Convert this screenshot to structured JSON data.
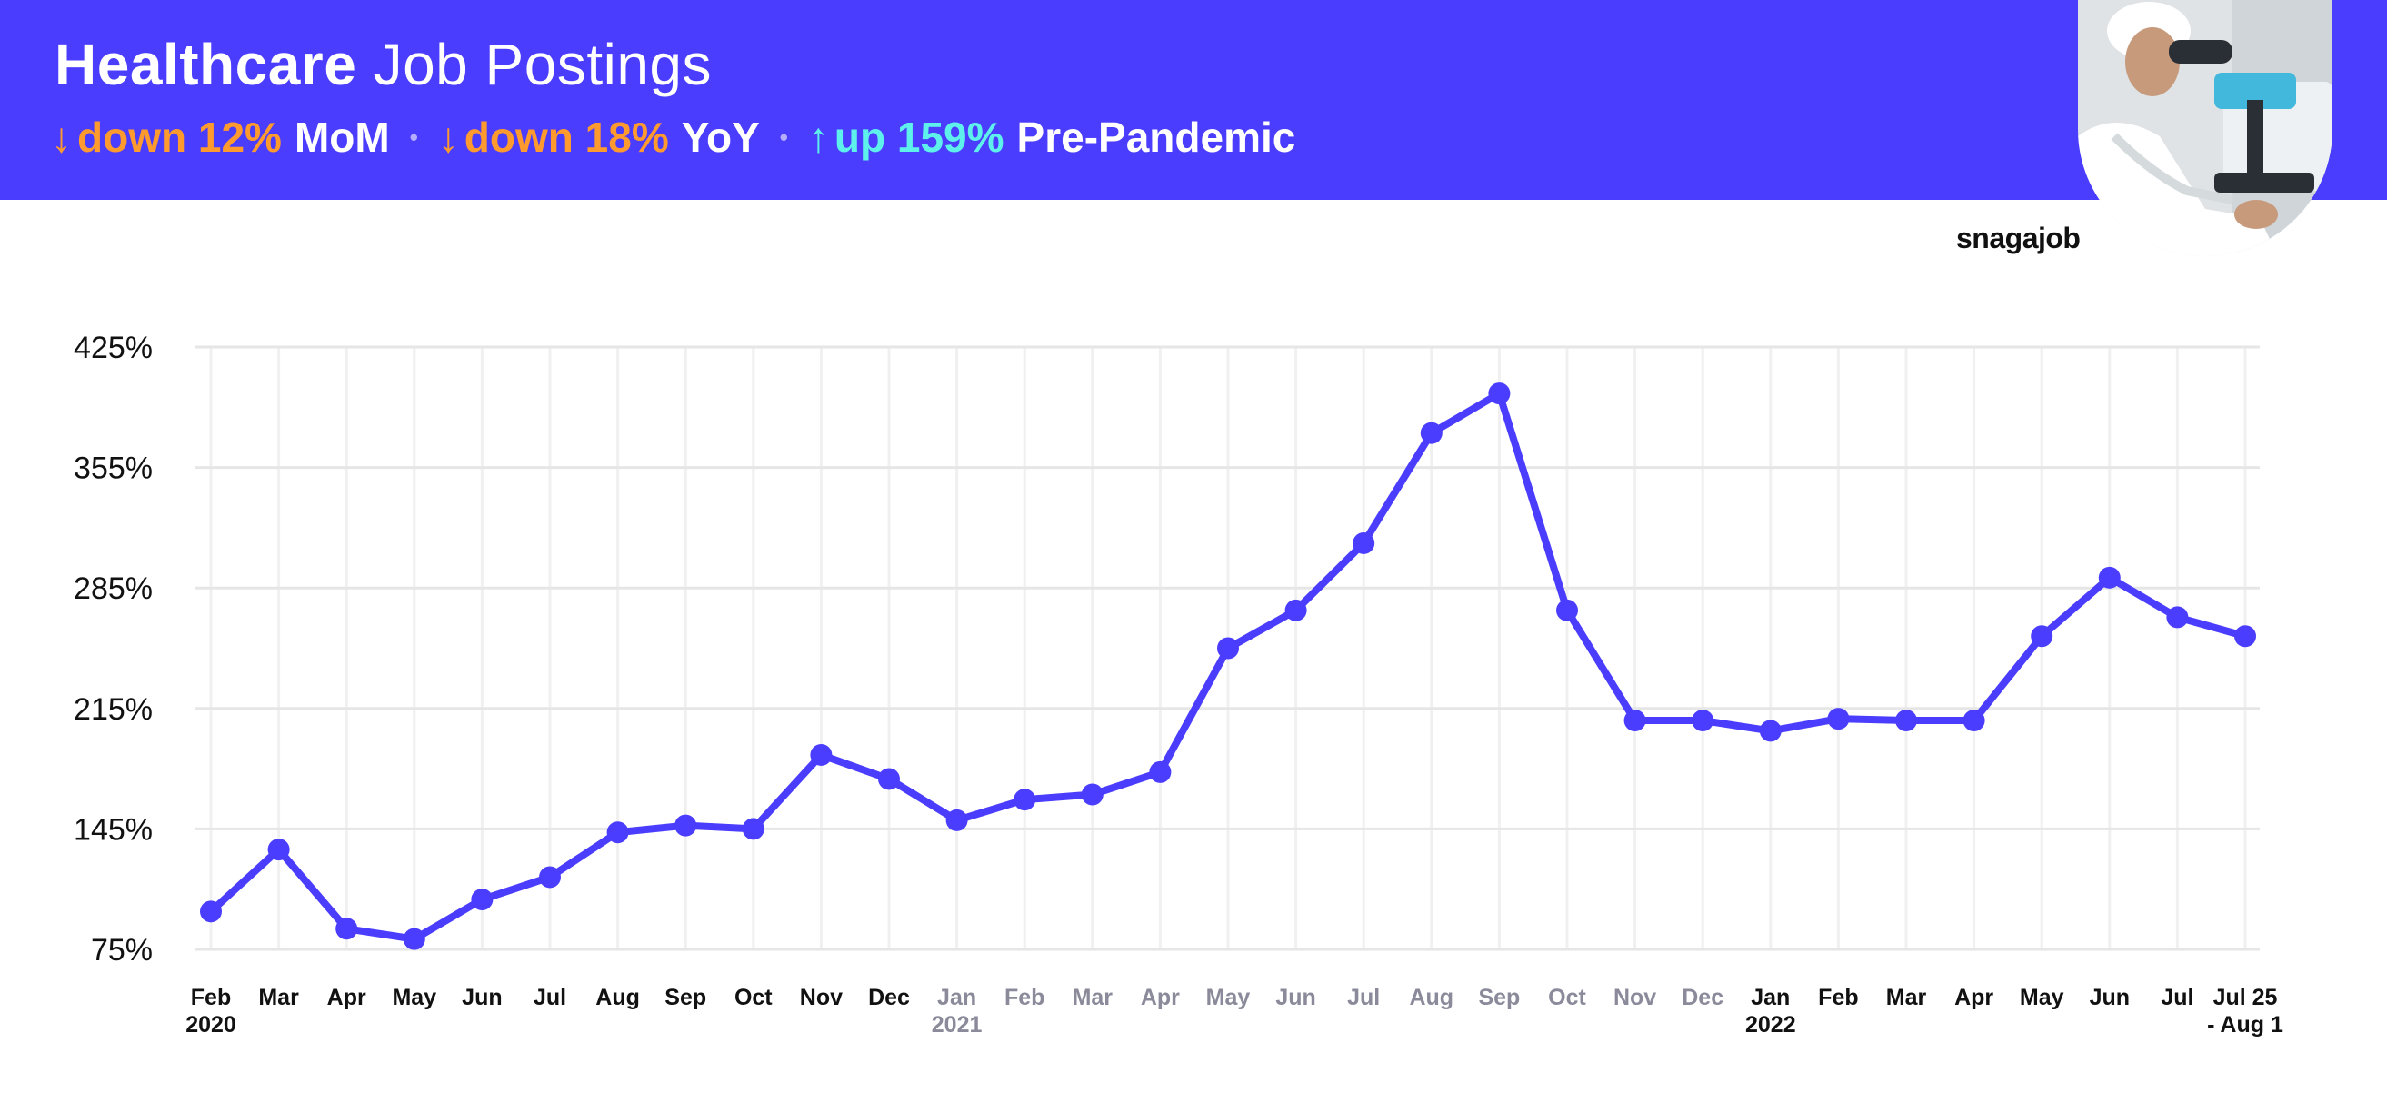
{
  "header": {
    "title_bold": "Healthcare",
    "title_light": "Job Postings",
    "stats": [
      {
        "arrow": "↓",
        "value": "down 12%",
        "label": "MoM",
        "color": "#ff9a2e"
      },
      {
        "arrow": "↓",
        "value": "down 18%",
        "label": "YoY",
        "color": "#ff9a2e"
      },
      {
        "arrow": "↑",
        "value": "up 159%",
        "label": "Pre-Pandemic",
        "color": "#5ef1ec"
      }
    ],
    "separator": "•"
  },
  "brand": "snagajob",
  "colors": {
    "header_bg": "#4b3dfd",
    "line": "#4b3dfd",
    "muted_tick": "#8a8a9a"
  },
  "chart_data": {
    "type": "line",
    "title": "",
    "xlabel": "",
    "ylabel": "",
    "ylim": [
      75,
      425
    ],
    "yticks": [
      "425%",
      "355%",
      "285%",
      "215%",
      "145%",
      "75%"
    ],
    "ytick_values": [
      425,
      355,
      285,
      215,
      145,
      75
    ],
    "grid": true,
    "categories": [
      {
        "label": "Feb",
        "sub": "2020",
        "muted": false
      },
      {
        "label": "Mar",
        "sub": "",
        "muted": false
      },
      {
        "label": "Apr",
        "sub": "",
        "muted": false
      },
      {
        "label": "May",
        "sub": "",
        "muted": false
      },
      {
        "label": "Jun",
        "sub": "",
        "muted": false
      },
      {
        "label": "Jul",
        "sub": "",
        "muted": false
      },
      {
        "label": "Aug",
        "sub": "",
        "muted": false
      },
      {
        "label": "Sep",
        "sub": "",
        "muted": false
      },
      {
        "label": "Oct",
        "sub": "",
        "muted": false
      },
      {
        "label": "Nov",
        "sub": "",
        "muted": false
      },
      {
        "label": "Dec",
        "sub": "",
        "muted": false
      },
      {
        "label": "Jan",
        "sub": "2021",
        "muted": true
      },
      {
        "label": "Feb",
        "sub": "",
        "muted": true
      },
      {
        "label": "Mar",
        "sub": "",
        "muted": true
      },
      {
        "label": "Apr",
        "sub": "",
        "muted": true
      },
      {
        "label": "May",
        "sub": "",
        "muted": true
      },
      {
        "label": "Jun",
        "sub": "",
        "muted": true
      },
      {
        "label": "Jul",
        "sub": "",
        "muted": true
      },
      {
        "label": "Aug",
        "sub": "",
        "muted": true
      },
      {
        "label": "Sep",
        "sub": "",
        "muted": true
      },
      {
        "label": "Oct",
        "sub": "",
        "muted": true
      },
      {
        "label": "Nov",
        "sub": "",
        "muted": true
      },
      {
        "label": "Dec",
        "sub": "",
        "muted": true
      },
      {
        "label": "Jan",
        "sub": "2022",
        "muted": false
      },
      {
        "label": "Feb",
        "sub": "",
        "muted": false
      },
      {
        "label": "Mar",
        "sub": "",
        "muted": false
      },
      {
        "label": "Apr",
        "sub": "",
        "muted": false
      },
      {
        "label": "May",
        "sub": "",
        "muted": false
      },
      {
        "label": "Jun",
        "sub": "",
        "muted": false
      },
      {
        "label": "Jul",
        "sub": "",
        "muted": false
      },
      {
        "label": "Jul 25",
        "sub": "- Aug 1",
        "muted": false
      }
    ],
    "series": [
      {
        "values": [
          97,
          133,
          87,
          81,
          104,
          117,
          143,
          147,
          145,
          188,
          174,
          150,
          162,
          165,
          178,
          250,
          272,
          311,
          375,
          398,
          272,
          208,
          208,
          202,
          209,
          208,
          208,
          257,
          291,
          268,
          257
        ]
      }
    ]
  }
}
